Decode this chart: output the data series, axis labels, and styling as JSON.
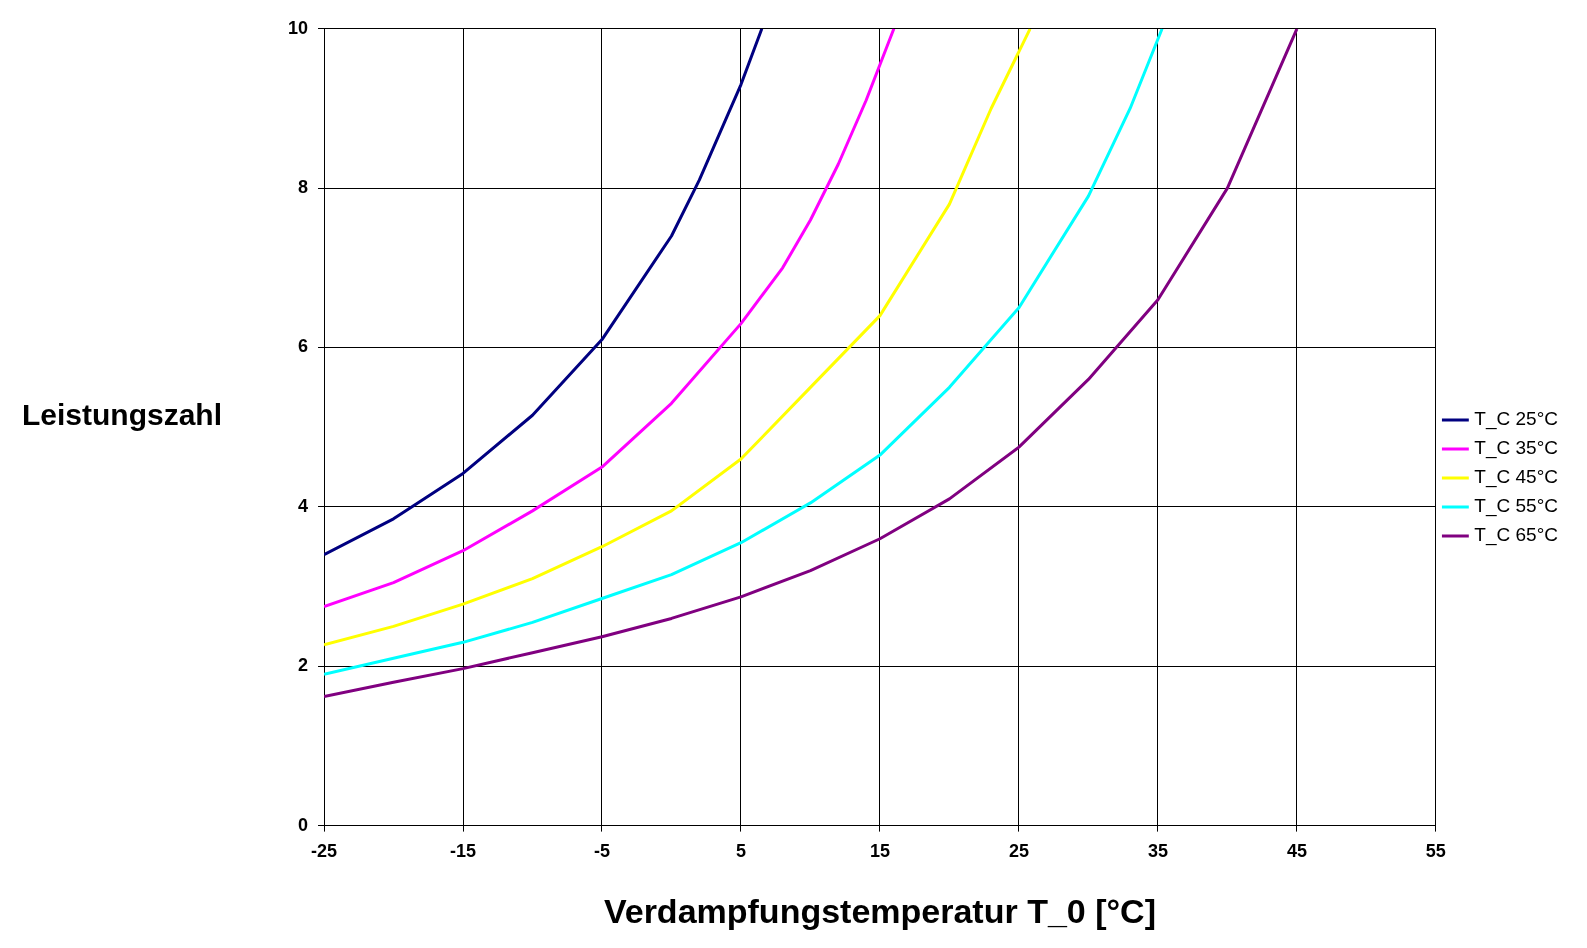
{
  "chart_data": {
    "type": "line",
    "xlabel": "Verdampfungstemperatur T_0 [°C]",
    "ylabel": "Leistungszahl",
    "xlim": [
      -25,
      55
    ],
    "xticks": [
      -25,
      -15,
      -5,
      5,
      15,
      25,
      35,
      45,
      55
    ],
    "ylim": [
      0,
      10
    ],
    "yticks": [
      0,
      2,
      4,
      6,
      8,
      10
    ],
    "grid": true,
    "legend": "right",
    "marker": "none",
    "line_style": "solid",
    "series": [
      {
        "name": "T_C 25°C",
        "color": "#000080",
        "x": [
          -25,
          -20,
          -15,
          -10,
          -5,
          0,
          2,
          4,
          5,
          6.5
        ],
        "values": [
          3.4,
          3.85,
          4.42,
          5.15,
          6.1,
          7.4,
          8.1,
          8.9,
          9.3,
          10
        ]
      },
      {
        "name": "T_C 35°C",
        "color": "#ff00ff",
        "x": [
          -25,
          -20,
          -15,
          -10,
          -5,
          0,
          5,
          8,
          10,
          12,
          14,
          16
        ],
        "values": [
          2.75,
          3.05,
          3.45,
          3.95,
          4.5,
          5.3,
          6.3,
          7.0,
          7.6,
          8.3,
          9.1,
          10
        ]
      },
      {
        "name": "T_C 45°C",
        "color": "#ffff00",
        "x": [
          -25,
          -20,
          -15,
          -10,
          -5,
          0,
          5,
          10,
          15,
          20,
          23,
          25.8
        ],
        "values": [
          2.27,
          2.5,
          2.78,
          3.1,
          3.5,
          3.95,
          4.6,
          5.5,
          6.4,
          7.8,
          9.0,
          10
        ]
      },
      {
        "name": "T_C 55°C",
        "color": "#00ffff",
        "x": [
          -25,
          -20,
          -15,
          -10,
          -5,
          0,
          5,
          10,
          15,
          20,
          25,
          30,
          33,
          35.3
        ],
        "values": [
          1.9,
          2.1,
          2.3,
          2.55,
          2.85,
          3.15,
          3.55,
          4.05,
          4.65,
          5.5,
          6.5,
          7.9,
          9.0,
          10
        ]
      },
      {
        "name": "T_C 65°C",
        "color": "#800080",
        "x": [
          -25,
          -20,
          -15,
          -10,
          -5,
          0,
          5,
          10,
          15,
          20,
          25,
          30,
          35,
          40,
          43,
          45
        ],
        "values": [
          1.62,
          1.8,
          1.97,
          2.17,
          2.37,
          2.6,
          2.87,
          3.2,
          3.6,
          4.1,
          4.75,
          5.6,
          6.6,
          8.0,
          9.2,
          10
        ]
      }
    ]
  }
}
